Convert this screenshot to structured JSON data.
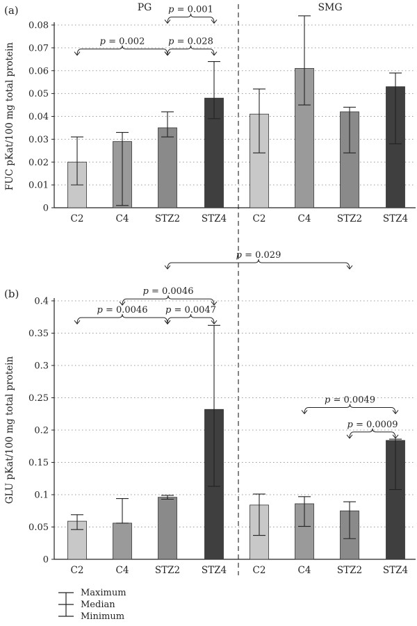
{
  "figure": {
    "panel_a_label": "(a)",
    "panel_b_label": "(b)",
    "group_labels": [
      "PG",
      "SMG"
    ],
    "legend": {
      "max_label": "Maximum",
      "median_label": "Median",
      "min_label": "Minimum"
    }
  },
  "chart_data": [
    {
      "type": "bar",
      "panel": "(a)",
      "ylabel": "FUC pKat/100 mg total protein",
      "ylim": [
        0,
        0.08
      ],
      "yticks": [
        "0",
        "0.01",
        "0.02",
        "0.03",
        "0.04",
        "0.05",
        "0.06",
        "0.07",
        "0.08"
      ],
      "grid": "dotted horizontal",
      "groups": [
        "PG",
        "SMG"
      ],
      "categories": [
        "C2",
        "C4",
        "STZ2",
        "STZ4",
        "C2",
        "C4",
        "STZ2",
        "STZ4"
      ],
      "median": [
        0.02,
        0.029,
        0.035,
        0.048,
        0.041,
        0.061,
        0.042,
        0.053
      ],
      "min": [
        0.01,
        0.001,
        0.031,
        0.039,
        0.024,
        0.045,
        0.024,
        0.028
      ],
      "max": [
        0.031,
        0.033,
        0.042,
        0.064,
        0.052,
        0.084,
        0.044,
        0.059
      ],
      "colors": [
        "#c8c8c8",
        "#9a9a9a",
        "#8a8a8a",
        "#3f3f3f",
        "#c8c8c8",
        "#9a9a9a",
        "#8a8a8a",
        "#3f3f3f"
      ],
      "annotations": [
        {
          "text": "p = 0.001",
          "from": 2,
          "to": 3,
          "level": 0.0835
        },
        {
          "text": "p = 0.002",
          "from": 0,
          "to": 2,
          "level": 0.0695
        },
        {
          "text": "p = 0.028",
          "from": 2,
          "to": 3,
          "level": 0.0695
        }
      ]
    },
    {
      "type": "bar",
      "panel": "(b)",
      "ylabel": "GLU pKat/100 mg total protein",
      "ylim": [
        0,
        0.4
      ],
      "yticks": [
        "0",
        "0.05",
        "0.1",
        "0.15",
        "0.2",
        "0.25",
        "0.3",
        "0.35",
        "0.4"
      ],
      "grid": "dotted horizontal",
      "groups": [
        "PG",
        "SMG"
      ],
      "categories": [
        "C2",
        "C4",
        "STZ2",
        "STZ4",
        "C2",
        "C4",
        "STZ2",
        "STZ4"
      ],
      "median": [
        0.059,
        0.056,
        0.096,
        0.232,
        0.084,
        0.086,
        0.075,
        0.184
      ],
      "min": [
        0.046,
        0.056,
        0.093,
        0.113,
        0.037,
        0.051,
        0.032,
        0.108
      ],
      "max": [
        0.069,
        0.094,
        0.099,
        0.362,
        0.101,
        0.097,
        0.089,
        0.186
      ],
      "colors": [
        "#c8c8c8",
        "#9a9a9a",
        "#8a8a8a",
        "#3f3f3f",
        "#c8c8c8",
        "#9a9a9a",
        "#8a8a8a",
        "#3f3f3f"
      ],
      "annotations": [
        {
          "text": "p = 0.029",
          "from": 2,
          "to": 6,
          "level": 0.459
        },
        {
          "text": "p = 0.0046",
          "from": 1,
          "to": 3,
          "level": 0.403
        },
        {
          "text": "p = 0.0046",
          "from": 0,
          "to": 2,
          "level": 0.374
        },
        {
          "text": "p = 0.0047",
          "from": 2,
          "to": 3,
          "level": 0.374
        },
        {
          "text": "p = 0.0049",
          "from": 5,
          "to": 7,
          "level": 0.235
        },
        {
          "text": "p = 0.0009",
          "from": 6,
          "to": 7,
          "level": 0.197
        }
      ]
    }
  ]
}
